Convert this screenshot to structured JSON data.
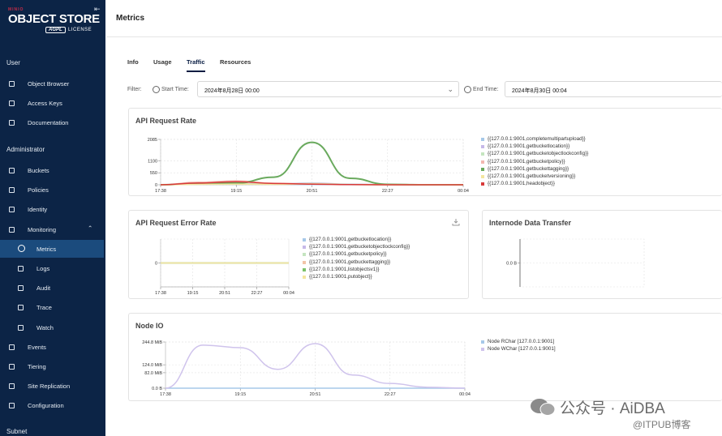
{
  "sidebar": {
    "brand": "MINIO",
    "product": "OBJECT STORE",
    "edition": "AGPL",
    "license": "LICENSE",
    "sections": [
      {
        "title": "User",
        "items": [
          "Object Browser",
          "Access Keys",
          "Documentation"
        ]
      },
      {
        "title": "Administrator",
        "items": [
          "Buckets",
          "Policies",
          "Identity",
          "Monitoring",
          "Metrics",
          "Logs",
          "Audit",
          "Trace",
          "Watch",
          "Events",
          "Tiering",
          "Site Replication",
          "Configuration"
        ]
      },
      {
        "title": "Subnet",
        "items": []
      }
    ]
  },
  "header": {
    "title": "Metrics"
  },
  "tabs": [
    "Info",
    "Usage",
    "Traffic",
    "Resources"
  ],
  "filter": {
    "label": "Filter:",
    "start_label": "Start Time:",
    "start_value": "2024年8月28日 00:00",
    "end_label": "End Time:",
    "end_value": "2024年8月30日 00:04"
  },
  "chart_data": [
    {
      "type": "line",
      "title": "API Request Rate",
      "categories": [
        "17:38",
        null,
        "19:15",
        null,
        "20:51",
        null,
        "22:27",
        null,
        "00:04"
      ],
      "ylim": [
        0,
        2085
      ],
      "yticks": [
        0,
        550,
        1100,
        2085
      ],
      "grid": true,
      "series": [
        {
          "name": "{{127.0.0.1:9001,completemultipartupload}}",
          "color": "#a6c8e8",
          "values": [
            0,
            20,
            30,
            20,
            10,
            5,
            0,
            0,
            0
          ]
        },
        {
          "name": "{{127.0.0.1:9001,getbucketlocation}}",
          "color": "#c6b9e8",
          "values": [
            0,
            40,
            60,
            40,
            80,
            30,
            5,
            0,
            0
          ]
        },
        {
          "name": "{{127.0.0.1:9001,getbucketobjectlockconfig}}",
          "color": "#c5e5c0",
          "values": [
            0,
            30,
            50,
            30,
            60,
            20,
            0,
            0,
            0
          ]
        },
        {
          "name": "{{127.0.0.1:9001,getbucketpolicy}}",
          "color": "#f2b8b0",
          "values": [
            0,
            120,
            180,
            70,
            40,
            10,
            0,
            0,
            0
          ]
        },
        {
          "name": "{{127.0.0.1:9001,getbuckettagging}}",
          "color": "#6aaa5e",
          "values": [
            0,
            60,
            80,
            350,
            1950,
            300,
            20,
            0,
            0
          ]
        },
        {
          "name": "{{127.0.0.1:9001,getbucketversioning}}",
          "color": "#f4e6a0",
          "values": [
            0,
            20,
            30,
            20,
            40,
            10,
            0,
            0,
            0
          ]
        },
        {
          "name": "{{127.0.0.1:9001,headobject}}",
          "color": "#d83a3a",
          "values": [
            0,
            80,
            140,
            60,
            30,
            10,
            0,
            0,
            0
          ]
        }
      ]
    },
    {
      "type": "line",
      "title": "API Request Error Rate",
      "categories": [
        "17:38",
        null,
        "19:15",
        null,
        "20:51",
        null,
        "22:27",
        null,
        "00:04"
      ],
      "ylim": [
        -1,
        1
      ],
      "yticks": [
        0
      ],
      "grid": true,
      "series": [
        {
          "name": "{{127.0.0.1:9001,getbucketlocation}}",
          "color": "#a6c8e8",
          "values": [
            0,
            0,
            0,
            0,
            0,
            0,
            0,
            0,
            0
          ]
        },
        {
          "name": "{{127.0.0.1:9001,getbucketobjectlockconfig}}",
          "color": "#c6b9e8",
          "values": [
            0,
            0,
            0,
            0,
            0,
            0,
            0,
            0,
            0
          ]
        },
        {
          "name": "{{127.0.0.1:9001,getbucketpolicy}}",
          "color": "#c5e5c0",
          "values": [
            0,
            0,
            0,
            0,
            0,
            0,
            0,
            0,
            0
          ]
        },
        {
          "name": "{{127.0.0.1:9001,getbuckettagging}}",
          "color": "#f2c4a8",
          "values": [
            0,
            0,
            0,
            0,
            0,
            0,
            0,
            0,
            0
          ]
        },
        {
          "name": "{{127.0.0.1:9001,listobjectsv1}}",
          "color": "#7cc26a",
          "values": [
            0,
            0,
            0,
            0,
            0,
            0,
            0,
            0,
            0
          ]
        },
        {
          "name": "{{127.0.0.1:9001,putobject}}",
          "color": "#f4e6a0",
          "values": [
            0,
            0,
            0,
            0,
            0,
            0,
            0,
            0,
            0
          ]
        }
      ]
    },
    {
      "type": "line",
      "title": "Internode Data Transfer",
      "ylim": [
        -1,
        1
      ],
      "yticks": [
        {
          "value": 0,
          "label": "0.0 B"
        }
      ],
      "grid": true,
      "series": []
    },
    {
      "type": "line",
      "title": "Node IO",
      "categories": [
        "17:38",
        null,
        "19:15",
        null,
        "20:51",
        null,
        "22:27",
        null,
        "00:04"
      ],
      "ylim": [
        0,
        244.8
      ],
      "yticks": [
        {
          "value": 0,
          "label": "0.0 B"
        },
        {
          "value": 82,
          "label": "82.0 MiB"
        },
        {
          "value": 124,
          "label": "124.0 MiB"
        },
        {
          "value": 244.8,
          "label": "244.8 MiB"
        }
      ],
      "grid": true,
      "series": [
        {
          "name": "Node RChar [127.0.0.1:9001]",
          "color": "#a6c8e8",
          "values": [
            0,
            0,
            0,
            0,
            0,
            0,
            0,
            0,
            0
          ]
        },
        {
          "name": "Node WChar [127.0.0.1:9001]",
          "color": "#cfc3ec",
          "values": [
            0,
            228,
            215,
            100,
            236,
            70,
            25,
            5,
            0
          ]
        }
      ]
    }
  ],
  "watermark": {
    "line1": "公众号 · AiDBA",
    "line2": "@ITPUB博客"
  }
}
